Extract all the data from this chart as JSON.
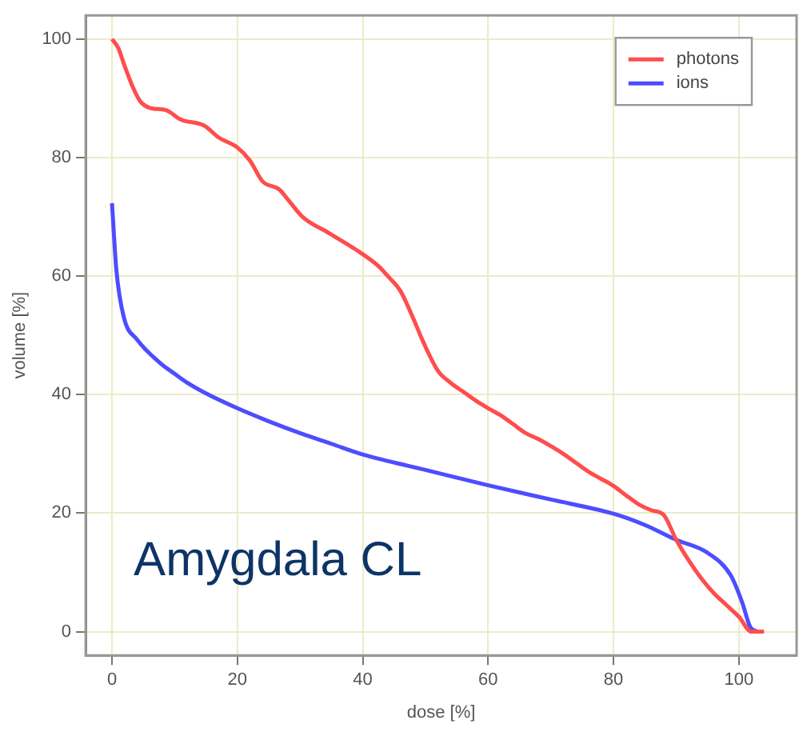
{
  "chart_data": {
    "type": "line",
    "xlabel": "dose [%]",
    "ylabel": "volume [%]",
    "annotations": [
      "Amygdala CL"
    ],
    "xlim": [
      -4.2,
      109.2
    ],
    "ylim": [
      -4,
      104
    ],
    "xticks": [
      0,
      20,
      40,
      60,
      80,
      100
    ],
    "yticks": [
      0,
      20,
      40,
      60,
      80,
      100
    ],
    "grid": true,
    "legend": "top right",
    "marker": "none",
    "line_style": "solid",
    "series": [
      {
        "name": "photons",
        "color": "#ff4d4d",
        "x": [
          0,
          1,
          2,
          3.4,
          4.5,
          6,
          8.6,
          11,
          14.7,
          17,
          20,
          22,
          24,
          26.7,
          28,
          30.4,
          34.7,
          39,
          42.5,
          44,
          46,
          48,
          49.6,
          52,
          54,
          56,
          58,
          60,
          62,
          64,
          66,
          68,
          70,
          72,
          74,
          76,
          78,
          80,
          82,
          84,
          86,
          88,
          90,
          92,
          94,
          96,
          98,
          100,
          102,
          104
        ],
        "values": [
          100,
          98.5,
          95.5,
          91.7,
          89.5,
          88.4,
          88,
          86.4,
          85.4,
          83.4,
          81.7,
          79.5,
          76,
          74.6,
          73,
          70,
          67.2,
          64.4,
          61.7,
          60,
          57.5,
          53,
          49,
          44,
          42,
          40.5,
          39,
          37.7,
          36.5,
          35,
          33.5,
          32.5,
          31.3,
          30,
          28.5,
          27,
          25.8,
          24.6,
          23,
          21.5,
          20.5,
          19.7,
          15.5,
          12,
          9,
          6.5,
          4.5,
          2.5,
          0,
          0
        ]
      },
      {
        "name": "ions",
        "color": "#4d4dff",
        "x": [
          0,
          0.7,
          1.9,
          4,
          7.5,
          10,
          12,
          15,
          20,
          25,
          30,
          35,
          40,
          50,
          60,
          70,
          80,
          85,
          90,
          95,
          98.7,
          100.5,
          101.8,
          103
        ],
        "values": [
          72.3,
          61,
          53,
          49.3,
          45.5,
          43.5,
          42,
          40.2,
          37.7,
          35.5,
          33.5,
          31.7,
          29.9,
          27.3,
          24.7,
          22.3,
          19.9,
          18,
          15.5,
          13.3,
          9.5,
          5,
          0.8,
          0
        ]
      }
    ]
  }
}
